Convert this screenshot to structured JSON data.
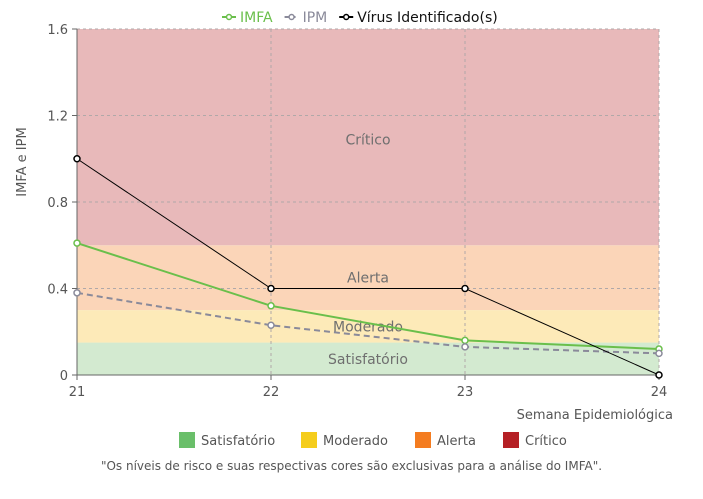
{
  "chart_data": {
    "type": "line",
    "x": [
      21,
      22,
      23,
      24
    ],
    "xlabel": "Semana Epidemiológica",
    "ylabel": "IMFA e IPM",
    "ylim": [
      0,
      1.6
    ],
    "y_ticks": [
      "0",
      "0.4",
      "0.8",
      "1.2",
      "1.6"
    ],
    "x_ticks": [
      "21",
      "22",
      "23",
      "24"
    ],
    "grid": true,
    "legend_position": "top-center",
    "series": [
      {
        "name": "IMFA",
        "values": [
          0.61,
          0.32,
          0.16,
          0.12
        ],
        "color": "#6abf4b",
        "dash": false,
        "width": 2
      },
      {
        "name": "IPM",
        "values": [
          0.38,
          0.23,
          0.13,
          0.1
        ],
        "color": "#8a8a9a",
        "dash": true,
        "width": 2
      },
      {
        "name": "Vírus Identificado(s)",
        "values": [
          1.0,
          0.4,
          0.4,
          0.0
        ],
        "color": "#000000",
        "dash": false,
        "width": 1
      }
    ],
    "bands": [
      {
        "label": "Satisfatório",
        "from": 0,
        "to": 0.15,
        "fill": "#d3ead0"
      },
      {
        "label": "Moderado",
        "from": 0.15,
        "to": 0.3,
        "fill": "#fdeab8"
      },
      {
        "label": "Alerta",
        "from": 0.3,
        "to": 0.6,
        "fill": "#fbd5b8"
      },
      {
        "label": "Crítico",
        "from": 0.6,
        "to": 1.6,
        "fill": "#e8b9ba"
      }
    ],
    "band_labels": [
      {
        "text": "Crítico",
        "y": 1.09
      },
      {
        "text": "Alerta",
        "y": 0.45
      },
      {
        "text": "Moderado",
        "y": 0.225
      },
      {
        "text": "Satisfatório",
        "y": 0.075
      }
    ],
    "risk_legend": [
      {
        "label": "Satisfatório",
        "color": "#6abf6a"
      },
      {
        "label": "Moderado",
        "color": "#f5cd1c"
      },
      {
        "label": "Alerta",
        "color": "#f47c20"
      },
      {
        "label": "Crítico",
        "color": "#b52025"
      }
    ],
    "note": "\"Os níveis de risco e suas respectivas cores são exclusivas para a análise do IMFA\"."
  }
}
